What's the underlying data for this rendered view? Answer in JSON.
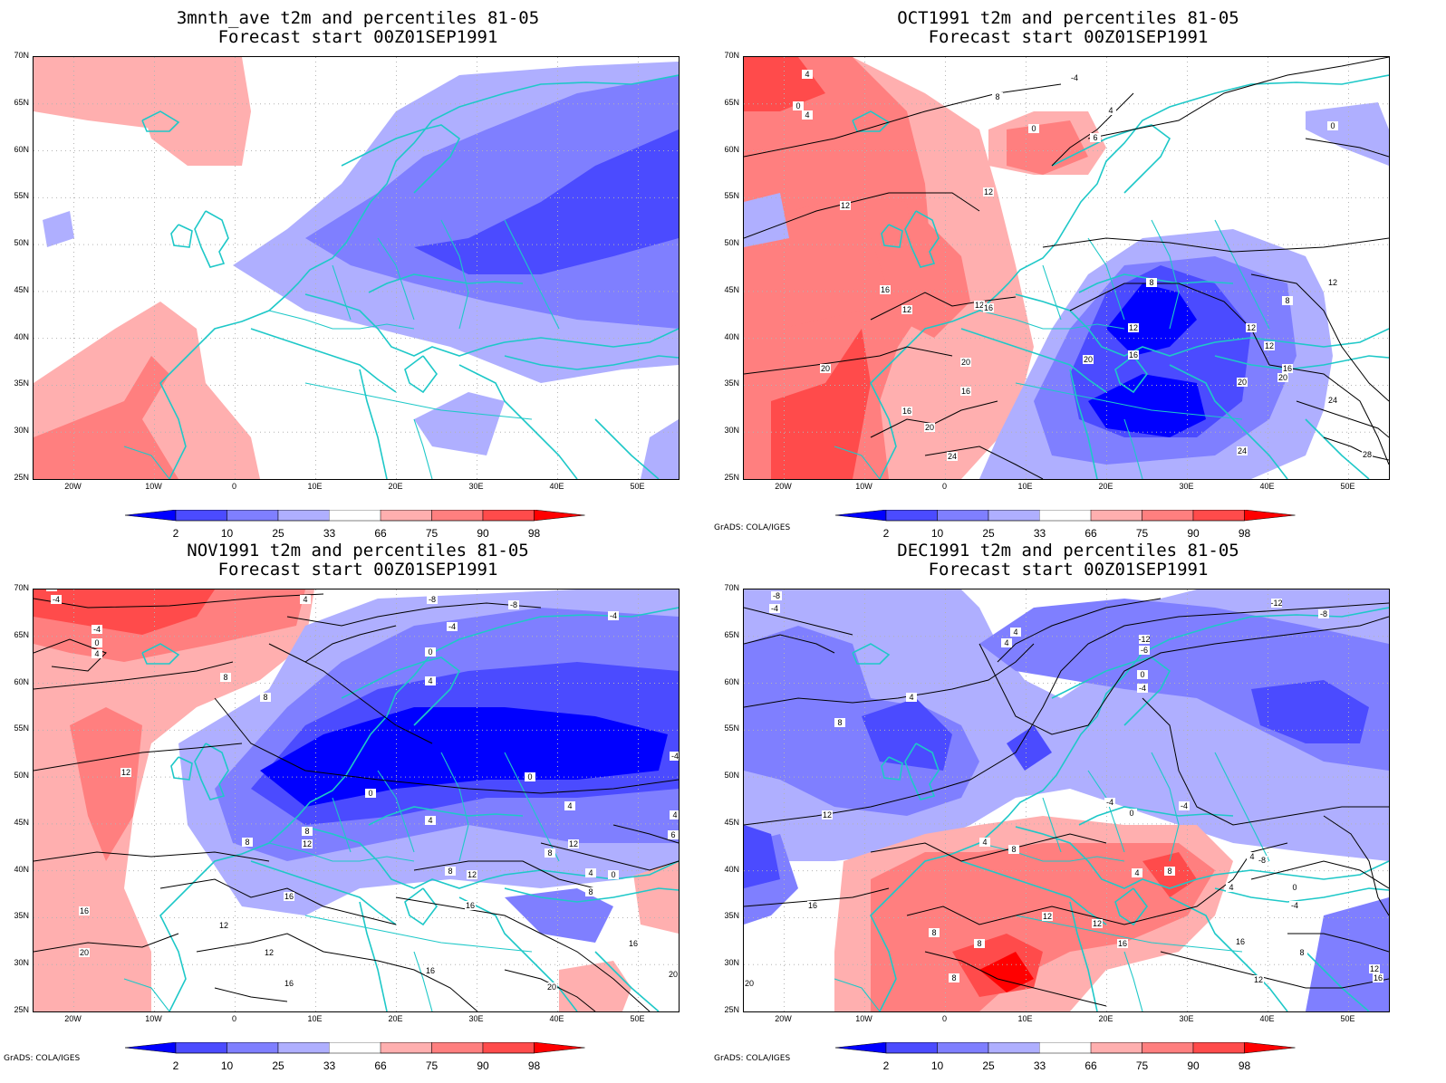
{
  "panels": [
    {
      "title": "3mnth_ave t2m and percentiles 81-05",
      "subtitle": "Forecast start 00Z01SEP1991",
      "credit": ""
    },
    {
      "title": "OCT1991 t2m and percentiles 81-05",
      "subtitle": "Forecast start 00Z01SEP1991",
      "credit": "GrADS: COLA/IGES"
    },
    {
      "title": "NOV1991 t2m and percentiles 81-05",
      "subtitle": "Forecast start 00Z01SEP1991",
      "credit": "GrADS: COLA/IGES"
    },
    {
      "title": "DEC1991 t2m and percentiles 81-05",
      "subtitle": "Forecast start 00Z01SEP1991",
      "credit": "GrADS: COLA/IGES"
    }
  ],
  "lat_labels": [
    "70N",
    "65N",
    "60N",
    "55N",
    "50N",
    "45N",
    "40N",
    "35N",
    "30N",
    "25N"
  ],
  "lon_labels": [
    "20W",
    "10W",
    "0",
    "10E",
    "20E",
    "30E",
    "40E",
    "50E"
  ],
  "colorbar": {
    "labels": [
      "2",
      "10",
      "25",
      "33",
      "66",
      "75",
      "90",
      "98"
    ],
    "colors": [
      "#0000ff",
      "#4b4bff",
      "#7f7fff",
      "#afafff",
      "#ffffff",
      "#ffafaf",
      "#ff7f7f",
      "#ff4b4b",
      "#ff0000"
    ]
  },
  "colors": {
    "coast": "#1ec8c8",
    "contour": "#000000",
    "grid": "#b4b4b4"
  }
}
